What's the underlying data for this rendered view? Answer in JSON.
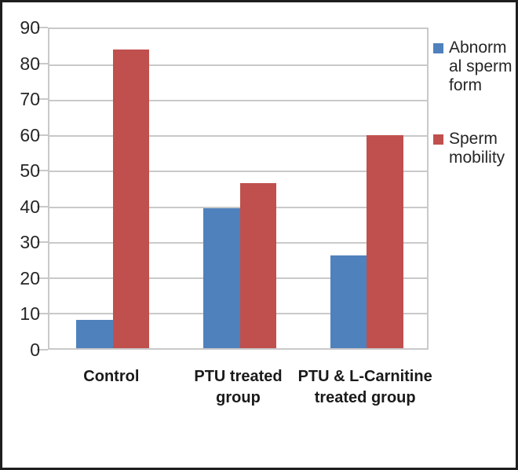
{
  "chart_data": {
    "type": "bar",
    "categories": [
      "Control",
      "PTU treated group",
      "PTU & L-Carnitine treated group"
    ],
    "categories_wrapped": [
      [
        "Control"
      ],
      [
        "PTU treated",
        "group"
      ],
      [
        "PTU & L-Carnitine",
        "treated group"
      ]
    ],
    "series": [
      {
        "name": "Abnormal sperm form",
        "color": "#4F81BD",
        "values": [
          8,
          39,
          26
        ]
      },
      {
        "name": "Sperm mobility",
        "color": "#C0504D",
        "values": [
          83.5,
          46,
          59.5
        ]
      }
    ],
    "ylim": [
      0,
      90
    ],
    "ytick_step": 10,
    "yticks": [
      0,
      10,
      20,
      30,
      40,
      50,
      60,
      70,
      80,
      90
    ],
    "grid": true,
    "legend_position": "right",
    "legend": {
      "entries": [
        {
          "series": "Abnormal sperm form",
          "lines": [
            "Abnorm",
            "al sperm",
            "form"
          ]
        },
        {
          "series": "Sperm mobility",
          "lines": [
            "Sperm",
            "mobility"
          ]
        }
      ]
    }
  },
  "colors": {
    "grid": "#C9C9C9",
    "frame_border": "#1E1E1E",
    "text": "#262626",
    "background": "#FFFFFF"
  }
}
